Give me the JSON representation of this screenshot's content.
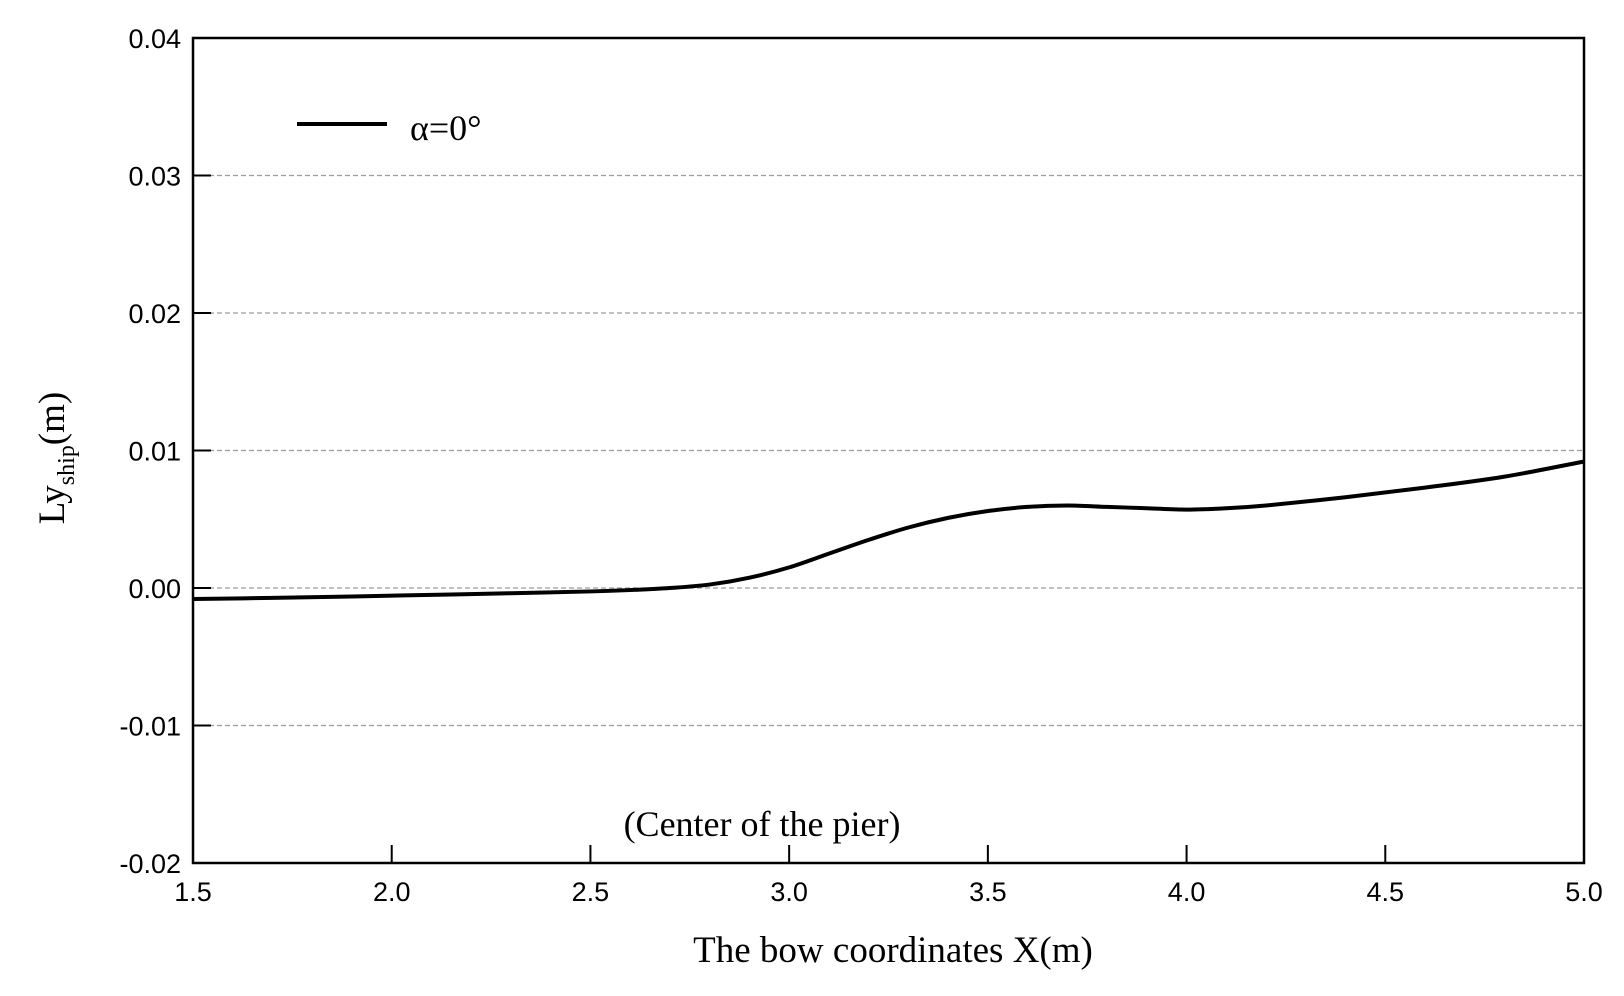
{
  "chart_data": {
    "type": "line",
    "title": "",
    "xlabel": "The bow coordinates X(m)",
    "ylabel": {
      "main": "Ly",
      "subscript": "ship",
      "unit": "(m)"
    },
    "xlim": [
      1.5,
      5.0
    ],
    "ylim": [
      -0.02,
      0.04
    ],
    "x_ticks": [
      1.5,
      2.0,
      2.5,
      3.0,
      3.5,
      4.0,
      4.5,
      5.0
    ],
    "x_tick_labels": [
      "1.5",
      "2.0",
      "2.5",
      "3.0",
      "3.5",
      "4.0",
      "4.5",
      "5.0"
    ],
    "y_ticks": [
      -0.02,
      -0.01,
      0.0,
      0.01,
      0.02,
      0.03,
      0.04
    ],
    "y_tick_labels": [
      "-0.02",
      "-0.01",
      "0.00",
      "0.01",
      "0.02",
      "0.03",
      "0.04"
    ],
    "grid": "horizontal dashed at 0.03, 0.02, 0.01, 0.00, -0.01",
    "legend_position": "top-left",
    "annotation": "(Center of the pier)",
    "series": [
      {
        "name": "α=0°",
        "color": "#000000",
        "x": [
          1.5,
          1.7,
          1.9,
          2.1,
          2.3,
          2.5,
          2.6,
          2.7,
          2.8,
          2.9,
          3.0,
          3.1,
          3.2,
          3.3,
          3.4,
          3.5,
          3.6,
          3.7,
          3.8,
          3.9,
          4.0,
          4.1,
          4.2,
          4.4,
          4.6,
          4.8,
          5.0
        ],
        "y": [
          -0.0008,
          -0.00072,
          -0.00062,
          -0.0005,
          -0.00038,
          -0.00025,
          -0.00015,
          0.0,
          0.00025,
          0.00075,
          0.0015,
          0.0025,
          0.0035,
          0.0044,
          0.0051,
          0.0056,
          0.0059,
          0.006,
          0.0059,
          0.0058,
          0.0057,
          0.0058,
          0.006,
          0.0066,
          0.0073,
          0.0081,
          0.0092
        ]
      }
    ]
  }
}
